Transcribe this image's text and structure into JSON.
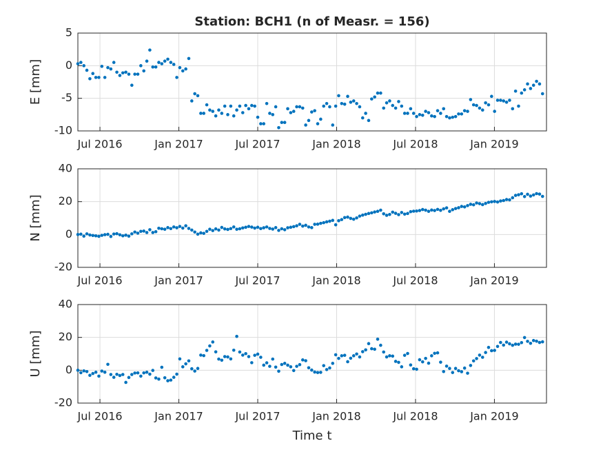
{
  "chart_data": {
    "type": "scatter",
    "title": "Station: BCH1 (n of Measr. = 156)",
    "xlabel": "Time t",
    "color": "#0072bd",
    "grid": true,
    "xlim": [
      2016.36,
      2019.33
    ],
    "xticks": [
      {
        "value": 2016.5,
        "label": "Jul 2016"
      },
      {
        "value": 2017.0,
        "label": "Jan 2017"
      },
      {
        "value": 2017.5,
        "label": "Jul 2017"
      },
      {
        "value": 2018.0,
        "label": "Jan 2018"
      },
      {
        "value": 2018.5,
        "label": "Jul 2018"
      },
      {
        "value": 2019.0,
        "label": "Jan 2019"
      }
    ],
    "x": [
      2016.36,
      2016.379,
      2016.398,
      2016.417,
      2016.436,
      2016.455,
      2016.474,
      2016.493,
      2016.512,
      2016.531,
      2016.55,
      2016.569,
      2016.588,
      2016.607,
      2016.626,
      2016.645,
      2016.664,
      2016.683,
      2016.702,
      2016.721,
      2016.74,
      2016.759,
      2016.778,
      2016.797,
      2016.816,
      2016.835,
      2016.854,
      2016.873,
      2016.892,
      2016.911,
      2016.93,
      2016.949,
      2016.968,
      2016.987,
      2017.006,
      2017.025,
      2017.044,
      2017.063,
      2017.082,
      2017.101,
      2017.12,
      2017.139,
      2017.158,
      2017.177,
      2017.196,
      2017.215,
      2017.234,
      2017.253,
      2017.272,
      2017.291,
      2017.31,
      2017.329,
      2017.348,
      2017.367,
      2017.386,
      2017.405,
      2017.424,
      2017.443,
      2017.462,
      2017.481,
      2017.5,
      2017.519,
      2017.538,
      2017.557,
      2017.576,
      2017.595,
      2017.614,
      2017.633,
      2017.652,
      2017.671,
      2017.69,
      2017.709,
      2017.728,
      2017.747,
      2017.766,
      2017.785,
      2017.804,
      2017.823,
      2017.842,
      2017.861,
      2017.88,
      2017.899,
      2017.918,
      2017.937,
      2017.956,
      2017.975,
      2017.994,
      2018.013,
      2018.032,
      2018.051,
      2018.07,
      2018.089,
      2018.108,
      2018.127,
      2018.146,
      2018.165,
      2018.184,
      2018.203,
      2018.222,
      2018.241,
      2018.26,
      2018.279,
      2018.298,
      2018.317,
      2018.336,
      2018.355,
      2018.374,
      2018.393,
      2018.412,
      2018.431,
      2018.45,
      2018.469,
      2018.488,
      2018.507,
      2018.526,
      2018.545,
      2018.564,
      2018.583,
      2018.602,
      2018.621,
      2018.64,
      2018.659,
      2018.678,
      2018.697,
      2018.716,
      2018.735,
      2018.754,
      2018.773,
      2018.792,
      2018.811,
      2018.83,
      2018.849,
      2018.868,
      2018.887,
      2018.906,
      2018.925,
      2018.944,
      2018.963,
      2018.982,
      2019.001,
      2019.02,
      2019.039,
      2019.058,
      2019.077,
      2019.096,
      2019.115,
      2019.134,
      2019.153,
      2019.172,
      2019.191,
      2019.21,
      2019.229,
      2019.248,
      2019.267,
      2019.286,
      2019.305
    ],
    "panels": [
      {
        "ylabel": "E [mm]",
        "ylim": [
          -10,
          5
        ],
        "yticks": [
          -10,
          -5,
          0,
          5
        ],
        "values": [
          0.3,
          0.5,
          0,
          -0.7,
          -2,
          -1.2,
          -1.8,
          -1.8,
          -0.1,
          -1.8,
          -0.3,
          -0.5,
          0.5,
          -1,
          -1.5,
          -1.1,
          -1,
          -1.3,
          -3,
          -1.3,
          -1.3,
          0,
          -0.8,
          0.7,
          2.4,
          -0.2,
          -0.2,
          0.5,
          0.3,
          0.7,
          1,
          0.5,
          0.2,
          -1.8,
          -0.3,
          -0.8,
          -0.5,
          1.1,
          -5.4,
          -4.3,
          -4.6,
          -7.3,
          -7.3,
          -6,
          -6.8,
          -7,
          -7.7,
          -6.8,
          -7.3,
          -6.2,
          -7.5,
          -6.2,
          -7.7,
          -6.8,
          -6.2,
          -7.2,
          -6.1,
          -6.6,
          -6.1,
          -6.2,
          -7.9,
          -8.9,
          -8.9,
          -5.8,
          -7.3,
          -7.5,
          -6.3,
          -9.5,
          -8.7,
          -8.7,
          -6.6,
          -7.2,
          -7,
          -6.3,
          -6.3,
          -6.5,
          -9.1,
          -8.4,
          -7.1,
          -6.9,
          -8.9,
          -8.2,
          -6.2,
          -5.8,
          -6.3,
          -9.1,
          -6.2,
          -4.6,
          -5.8,
          -5.9,
          -4.7,
          -5.6,
          -5.4,
          -5.8,
          -6.3,
          -8,
          -7.3,
          -8.4,
          -5.1,
          -4.8,
          -4.2,
          -4.2,
          -6.5,
          -5.7,
          -5.4,
          -6.1,
          -6.5,
          -5.5,
          -6.2,
          -7.3,
          -7.3,
          -6.6,
          -7.3,
          -7.8,
          -7.5,
          -7.6,
          -7,
          -7.2,
          -7.7,
          -7.8,
          -6.9,
          -7.3,
          -6.6,
          -7.8,
          -8,
          -7.9,
          -7.8,
          -7.4,
          -7.4,
          -6.9,
          -7,
          -5.2,
          -6,
          -6.1,
          -6.5,
          -6.8,
          -5.7,
          -6,
          -4.7,
          -7,
          -5.3,
          -5.3,
          -5.4,
          -5.6,
          -5.3,
          -6.6,
          -3.9,
          -6.2,
          -4.2,
          -3.7,
          -2.8,
          -3.5,
          -3,
          -2.4,
          -2.8,
          -4.3
        ]
      },
      {
        "ylabel": "N [mm]",
        "ylim": [
          -20,
          40
        ],
        "yticks": [
          -20,
          0,
          20,
          40
        ],
        "values": [
          0,
          0.2,
          -1,
          0.4,
          -0.3,
          -0.6,
          -0.8,
          -1.1,
          -0.5,
          -0.1,
          0.1,
          -1.2,
          0.3,
          0.5,
          -0.2,
          -0.8,
          -0.4,
          -1,
          0.4,
          1.5,
          0.8,
          1.9,
          2.1,
          1.2,
          2.9,
          1.2,
          1.7,
          3.8,
          3.5,
          3.2,
          4.2,
          3.6,
          4.6,
          4.1,
          4.9,
          3.9,
          5.3,
          3.7,
          2.7,
          1.5,
          0.2,
          1,
          0.7,
          1.9,
          3.2,
          2.4,
          3.4,
          2.7,
          4.3,
          3.4,
          3.1,
          3.6,
          4.6,
          3.2,
          3.5,
          4,
          4.4,
          4.9,
          4.5,
          3.9,
          4.4,
          3.6,
          4.1,
          4.6,
          3.7,
          3.3,
          4.2,
          2.5,
          3.5,
          2.9,
          4.1,
          4.4,
          4.8,
          5.3,
          6.2,
          5.1,
          5.6,
          4.6,
          4.2,
          6.2,
          6.3,
          6.8,
          7.2,
          7.7,
          8.1,
          8.6,
          5.9,
          8.4,
          9.1,
          10.3,
          10.6,
          9.8,
          9.3,
          10.1,
          11.2,
          11.8,
          12.3,
          12.8,
          13.2,
          13.7,
          14.1,
          14.8,
          12.6,
          11.7,
          12.2,
          13.6,
          12.9,
          12.1,
          13.4,
          12.4,
          12.8,
          13.9,
          14.2,
          14.3,
          14.6,
          15.2,
          14.8,
          14.1,
          14.9,
          14.6,
          15.3,
          14.7,
          15.6,
          16.2,
          14.1,
          15.1,
          15.8,
          16.3,
          17.1,
          16.8,
          17.6,
          18.4,
          18.1,
          19.2,
          18.8,
          18.2,
          18.9,
          19.6,
          19.9,
          20.1,
          19.8,
          20.4,
          20.7,
          21.3,
          21.1,
          22.4,
          23.8,
          24.2,
          24.8,
          23.1,
          24.5,
          23.4,
          24.1,
          24.9,
          24.6,
          23.2
        ]
      },
      {
        "ylabel": "U [mm]",
        "ylim": [
          -20,
          40
        ],
        "yticks": [
          -20,
          0,
          20,
          40
        ],
        "values": [
          0,
          -1.5,
          -0.4,
          -0.8,
          -3.1,
          -2,
          -1.2,
          -3.6,
          -0.5,
          -1.2,
          3.6,
          -2.6,
          -4.3,
          -2.5,
          -3.2,
          -2.6,
          -7.4,
          -4.4,
          -2.6,
          -1.7,
          -1.6,
          -3.6,
          -1.6,
          -1.2,
          -2.4,
          -0.1,
          -4.7,
          -5.4,
          1.8,
          -4.6,
          -6.4,
          -6,
          -4.3,
          -2.4,
          6.9,
          2.1,
          3.9,
          5.7,
          0.9,
          -0.5,
          1.1,
          9.2,
          8.9,
          12.1,
          14.8,
          17.2,
          11.2,
          6.8,
          6.1,
          8.3,
          8.1,
          6.9,
          12.2,
          20.6,
          11.1,
          9.2,
          10.1,
          8.3,
          4.6,
          9.1,
          9.8,
          7.9,
          3.1,
          4.5,
          2.4,
          6.8,
          1.9,
          -0.6,
          3.5,
          4.2,
          3.1,
          2.1,
          -0.2,
          2.4,
          3.4,
          6.3,
          5.8,
          1.5,
          0.1,
          -1.1,
          -1.4,
          -1.3,
          2.8,
          0.4,
          1.4,
          4.2,
          9.4,
          7.2,
          8.8,
          9.1,
          5.2,
          7.3,
          8.8,
          9.9,
          8.1,
          11.3,
          12.4,
          16.2,
          13.1,
          12.8,
          18.9,
          15.2,
          11.1,
          8.1,
          8.8,
          8.6,
          5.4,
          4.8,
          2.1,
          9.1,
          10.2,
          3.2,
          0.9,
          0.6,
          6.4,
          5.1,
          7.2,
          4.3,
          8.8,
          10.3,
          10.6,
          4.9,
          -0.8,
          2.5,
          1.1,
          -1.4,
          1.1,
          -0.3,
          -0.9,
          1.3,
          -1.8,
          2.9,
          5.7,
          7.1,
          9.2,
          7.9,
          10.8,
          13.9,
          11.9,
          12.1,
          14.5,
          16.9,
          15.3,
          17.1,
          16.1,
          15.2,
          15.9,
          15.8,
          16.8,
          19.9,
          17.6,
          16.4,
          18.1,
          17.7,
          16.9,
          17.3
        ]
      }
    ]
  }
}
